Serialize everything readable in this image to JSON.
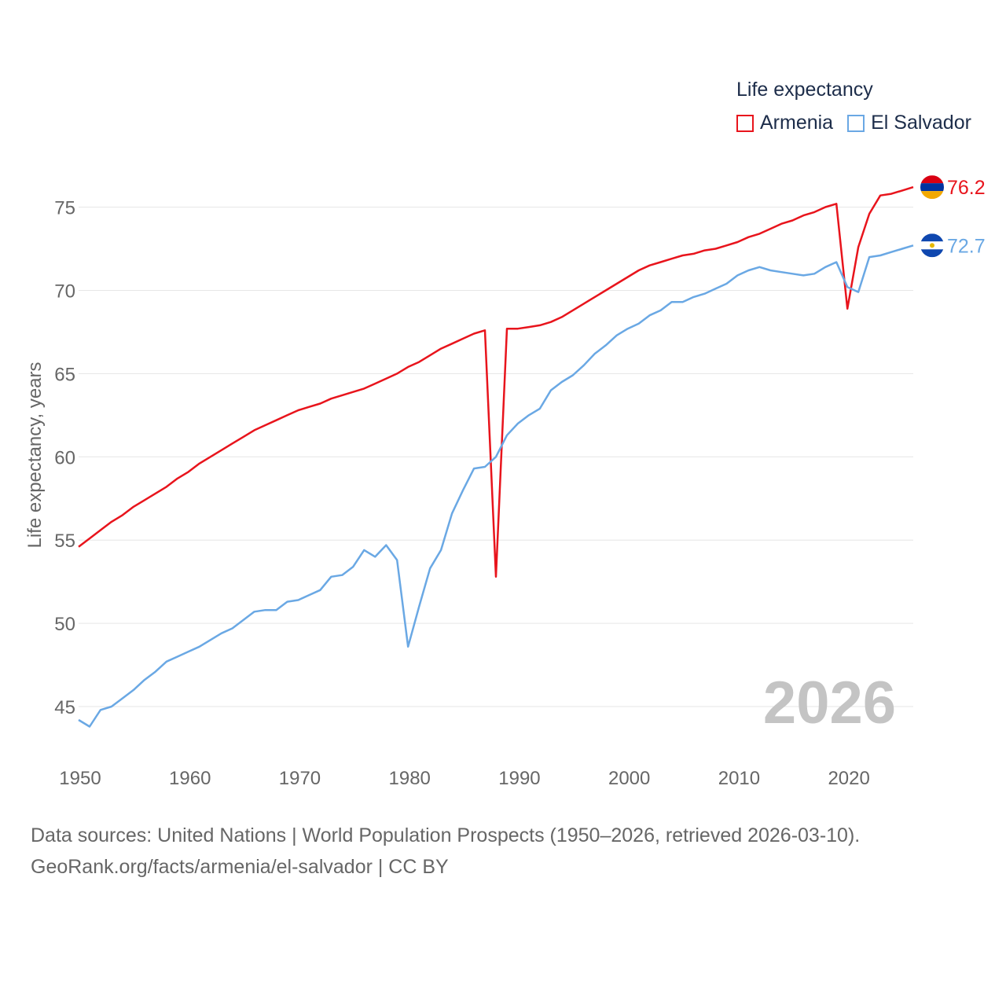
{
  "legend": {
    "title": "Life expectancy",
    "items": [
      {
        "label": "Armenia",
        "color": "#e8141c"
      },
      {
        "label": "El Salvador",
        "color": "#6aa8e4"
      }
    ]
  },
  "footer": {
    "line1": "Data sources: United Nations | World Population Prospects (1950–2026, retrieved 2026-03-10).",
    "line2": "GeoRank.org/facts/armenia/el-salvador | CC BY"
  },
  "chart_data": {
    "type": "line",
    "title": "Life expectancy",
    "xlabel": "",
    "ylabel": "Life expectancy, years",
    "xlim": [
      1950,
      2026
    ],
    "ylim": [
      42.5,
      78
    ],
    "x_ticks": [
      1950,
      1960,
      1970,
      1980,
      1990,
      2000,
      2010,
      2020
    ],
    "y_ticks": [
      45,
      50,
      55,
      60,
      65,
      70,
      75
    ],
    "grid": true,
    "legend_position": "top-right",
    "year_label": "2026",
    "x": [
      1950,
      1951,
      1952,
      1953,
      1954,
      1955,
      1956,
      1957,
      1958,
      1959,
      1960,
      1961,
      1962,
      1963,
      1964,
      1965,
      1966,
      1967,
      1968,
      1969,
      1970,
      1971,
      1972,
      1973,
      1974,
      1975,
      1976,
      1977,
      1978,
      1979,
      1980,
      1981,
      1982,
      1983,
      1984,
      1985,
      1986,
      1987,
      1988,
      1989,
      1990,
      1991,
      1992,
      1993,
      1994,
      1995,
      1996,
      1997,
      1998,
      1999,
      2000,
      2001,
      2002,
      2003,
      2004,
      2005,
      2006,
      2007,
      2008,
      2009,
      2010,
      2011,
      2012,
      2013,
      2014,
      2015,
      2016,
      2017,
      2018,
      2019,
      2020,
      2021,
      2022,
      2023,
      2024,
      2025,
      2026
    ],
    "series": [
      {
        "name": "Armenia",
        "color": "#e8141c",
        "end_label": "76.2",
        "values": [
          54.6,
          55.1,
          55.6,
          56.1,
          56.5,
          57.0,
          57.4,
          57.8,
          58.2,
          58.7,
          59.1,
          59.6,
          60.0,
          60.4,
          60.8,
          61.2,
          61.6,
          61.9,
          62.2,
          62.5,
          62.8,
          63.0,
          63.2,
          63.5,
          63.7,
          63.9,
          64.1,
          64.4,
          64.7,
          65.0,
          65.4,
          65.7,
          66.1,
          66.5,
          66.8,
          67.1,
          67.4,
          67.6,
          52.8,
          67.7,
          67.7,
          67.8,
          67.9,
          68.1,
          68.4,
          68.8,
          69.2,
          69.6,
          70.0,
          70.4,
          70.8,
          71.2,
          71.5,
          71.7,
          71.9,
          72.1,
          72.2,
          72.4,
          72.5,
          72.7,
          72.9,
          73.2,
          73.4,
          73.7,
          74.0,
          74.2,
          74.5,
          74.7,
          75.0,
          75.2,
          68.9,
          72.6,
          74.6,
          75.7,
          75.8,
          76.0,
          76.2
        ]
      },
      {
        "name": "El Salvador",
        "color": "#6aa8e4",
        "end_label": "72.7",
        "values": [
          44.2,
          43.8,
          44.8,
          45.0,
          45.5,
          46.0,
          46.6,
          47.1,
          47.7,
          48.0,
          48.3,
          48.6,
          49.0,
          49.4,
          49.7,
          50.2,
          50.7,
          50.8,
          50.8,
          51.3,
          51.4,
          51.7,
          52.0,
          52.8,
          52.9,
          53.4,
          54.4,
          54.0,
          54.7,
          53.8,
          48.6,
          51.0,
          53.3,
          54.4,
          56.6,
          58.0,
          59.3,
          59.4,
          60.0,
          61.3,
          62.0,
          62.5,
          62.9,
          64.0,
          64.5,
          64.9,
          65.5,
          66.2,
          66.7,
          67.3,
          67.7,
          68.0,
          68.5,
          68.8,
          69.3,
          69.3,
          69.6,
          69.8,
          70.1,
          70.4,
          70.9,
          71.2,
          71.4,
          71.2,
          71.1,
          71.0,
          70.9,
          71.0,
          71.4,
          71.7,
          70.2,
          69.9,
          72.0,
          72.1,
          72.3,
          72.5,
          72.7
        ]
      }
    ]
  }
}
